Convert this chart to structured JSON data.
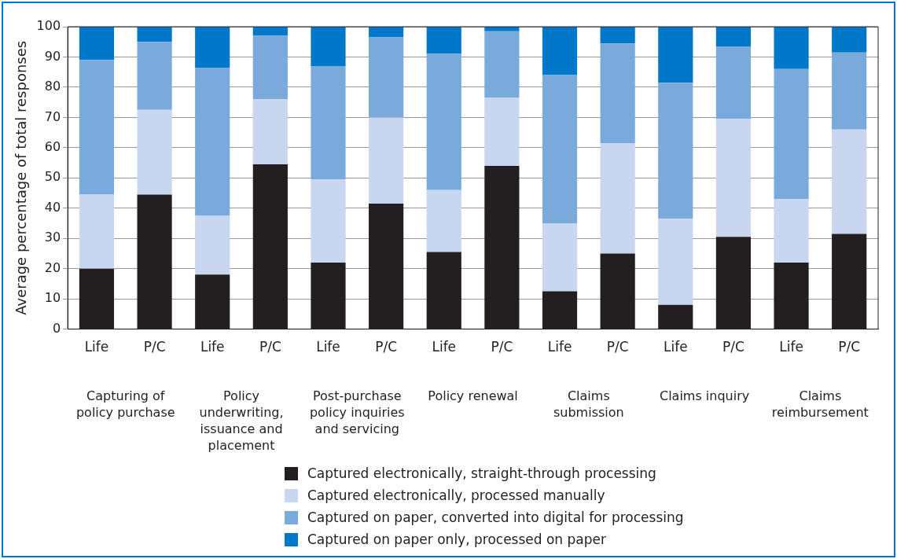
{
  "chart_data": {
    "type": "bar",
    "stacked": true,
    "ylabel": "Average percentage of total responses",
    "categories": [
      "Life",
      "P/C",
      "Life",
      "P/C",
      "Life",
      "P/C",
      "Life",
      "P/C",
      "Life",
      "P/C",
      "Life",
      "P/C",
      "Life",
      "P/C"
    ],
    "annotations": [
      "Capturing of policy purchase",
      "Policy underwriting, issuance and placement",
      "Post-purchase policy inquiries and servicing",
      "Policy renewal",
      "Claims submission",
      "Claims inquiry",
      "Claims reimbursement"
    ],
    "series": [
      {
        "name": "Captured electronically, straight-through processing",
        "color": "#231f20",
        "values": [
          20,
          44.5,
          18,
          54.5,
          22,
          41.5,
          25.5,
          54,
          12.5,
          25,
          8,
          30.5,
          22,
          31.5
        ]
      },
      {
        "name": "Captured electronically, processed manually",
        "color": "#c8d6ef",
        "values": [
          24.5,
          28,
          19.5,
          21.5,
          27.5,
          28.5,
          20.5,
          22.5,
          22.5,
          36.5,
          28.5,
          39,
          21,
          34.5
        ]
      },
      {
        "name": "Captured on paper, converted into digital for processing",
        "color": "#7aa9dc",
        "values": [
          44.5,
          22.5,
          49,
          21,
          37.5,
          26.5,
          45,
          22,
          49,
          33,
          45,
          24,
          43,
          25.5
        ]
      },
      {
        "name": "Captured on paper only, processed on paper",
        "color": "#0077c8",
        "values": [
          11,
          5,
          13.5,
          3,
          13,
          3.5,
          9,
          1.5,
          16,
          5.5,
          18.5,
          6.5,
          14,
          8.5
        ]
      }
    ],
    "ylim": [
      0,
      100
    ],
    "yticks": [
      0,
      10,
      20,
      30,
      40,
      50,
      60,
      70,
      80,
      90,
      100
    ],
    "grid": "y",
    "legend": "bottom"
  }
}
